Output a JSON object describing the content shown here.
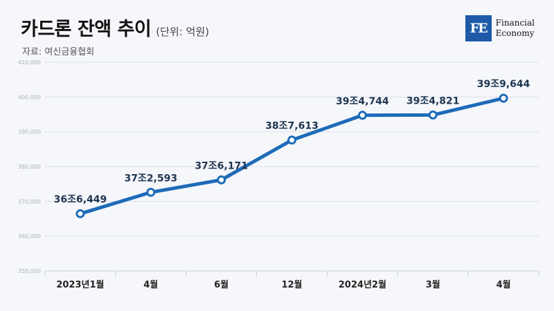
{
  "header": {
    "title": "카드론 잔액 추이",
    "unit": "(단위: 억원)",
    "source": "자료: 여신금융협회"
  },
  "logo": {
    "mark": "FE",
    "line1": "Financial",
    "line2": "Economy",
    "color": "#1e5aa8"
  },
  "chart_data": {
    "type": "line",
    "title": "카드론 잔액 추이",
    "ylabel": "",
    "xlabel": "",
    "ylim": [
      350000,
      410000
    ],
    "yticks": [
      350000,
      360000,
      370000,
      380000,
      390000,
      400000,
      410000
    ],
    "ytick_labels": [
      "350,000",
      "360,000",
      "370,000",
      "380,000",
      "390,000",
      "400,000",
      "410,000"
    ],
    "grid": true,
    "categories": [
      "2023년1월",
      "4월",
      "6월",
      "12월",
      "2024년2월",
      "3월",
      "4월"
    ],
    "series": [
      {
        "values": [
          366449,
          372593,
          376171,
          387613,
          394744,
          394821,
          399644
        ],
        "labels": [
          "36조6,449",
          "37조2,593",
          "37조6,171",
          "38조7,613",
          "39조4,744",
          "39조4,821",
          "39조9,644"
        ],
        "color": "#1e6bb8"
      }
    ]
  }
}
